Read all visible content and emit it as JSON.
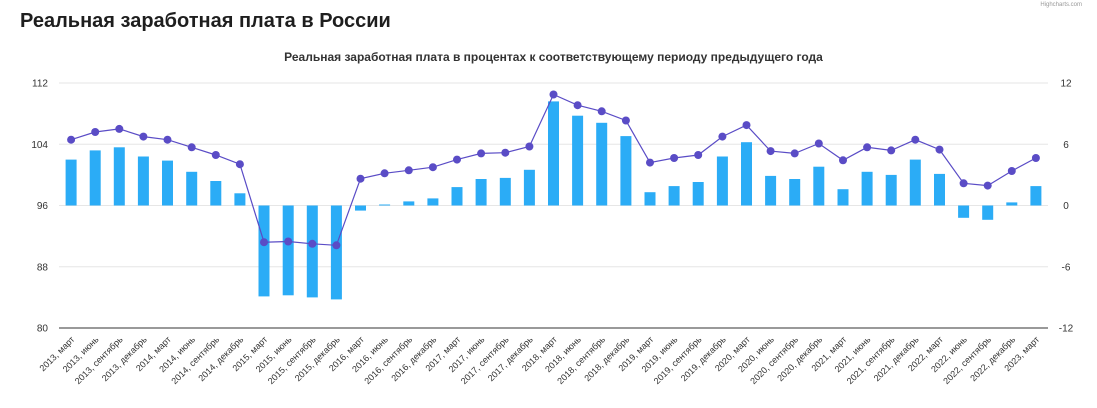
{
  "page": {
    "title": "Реальная заработная плата в России",
    "credit": "Highcharts.com"
  },
  "colors": {
    "bar": "#2bacf6",
    "line": "#5a4cc6",
    "grid": "#e6e6e6",
    "axis_line": "#333333"
  },
  "chart_data": {
    "type": "bar",
    "title": "Реальная заработная плата в процентах к соответствующему периоду предыдущего года",
    "categories": [
      "2013, март",
      "2013, июнь",
      "2013, сентябрь",
      "2013, декабрь",
      "2014, март",
      "2014, июнь",
      "2014, сентябрь",
      "2014, декабрь",
      "2015, март",
      "2015, июнь",
      "2015, сентябрь",
      "2015, декабрь",
      "2016, март",
      "2016, июнь",
      "2016, сентябрь",
      "2016, декабрь",
      "2017, март",
      "2017, июнь",
      "2017, сентябрь",
      "2017, декабрь",
      "2018, март",
      "2018, июнь",
      "2018, сентябрь",
      "2018, декабрь",
      "2019, март",
      "2019, июнь",
      "2019, сентябрь",
      "2019, декабрь",
      "2020, март",
      "2020, июнь",
      "2020, сентябрь",
      "2020, декабрь",
      "2021, март",
      "2021, июнь",
      "2021, сентябрь",
      "2021, декабрь",
      "2022, март",
      "2022, июнь",
      "2022, сентябрь",
      "2022, декабрь",
      "2023, март"
    ],
    "y_left": {
      "range": [
        80,
        112
      ],
      "ticks": [
        80,
        88,
        96,
        104,
        112
      ]
    },
    "y_right": {
      "range": [
        -12,
        12
      ],
      "ticks": [
        -12,
        -6,
        0,
        6,
        12
      ]
    },
    "series": [
      {
        "type": "bar",
        "axis": "right",
        "values": [
          4.5,
          5.4,
          5.7,
          4.8,
          4.4,
          3.3,
          2.4,
          1.2,
          -8.9,
          -8.8,
          -9.0,
          -9.2,
          -0.5,
          0.1,
          0.4,
          0.7,
          1.8,
          2.6,
          2.7,
          3.5,
          10.2,
          8.8,
          8.1,
          6.8,
          1.3,
          1.9,
          2.3,
          4.8,
          6.2,
          2.9,
          2.6,
          3.8,
          1.6,
          3.3,
          3.0,
          4.5,
          3.1,
          -1.2,
          -1.4,
          0.3,
          1.9
        ]
      },
      {
        "type": "line",
        "axis": "left",
        "values": [
          104.6,
          105.6,
          106.0,
          105.0,
          104.6,
          103.6,
          102.6,
          101.4,
          91.2,
          91.3,
          91.0,
          90.8,
          99.5,
          100.2,
          100.6,
          101.0,
          102.0,
          102.8,
          102.9,
          103.7,
          110.5,
          109.1,
          108.3,
          107.1,
          101.6,
          102.2,
          102.6,
          105.0,
          106.5,
          103.1,
          102.8,
          104.1,
          101.9,
          103.6,
          103.2,
          104.6,
          103.3,
          98.9,
          98.6,
          100.5,
          102.2
        ]
      }
    ],
    "grid": true,
    "legend": "none"
  }
}
